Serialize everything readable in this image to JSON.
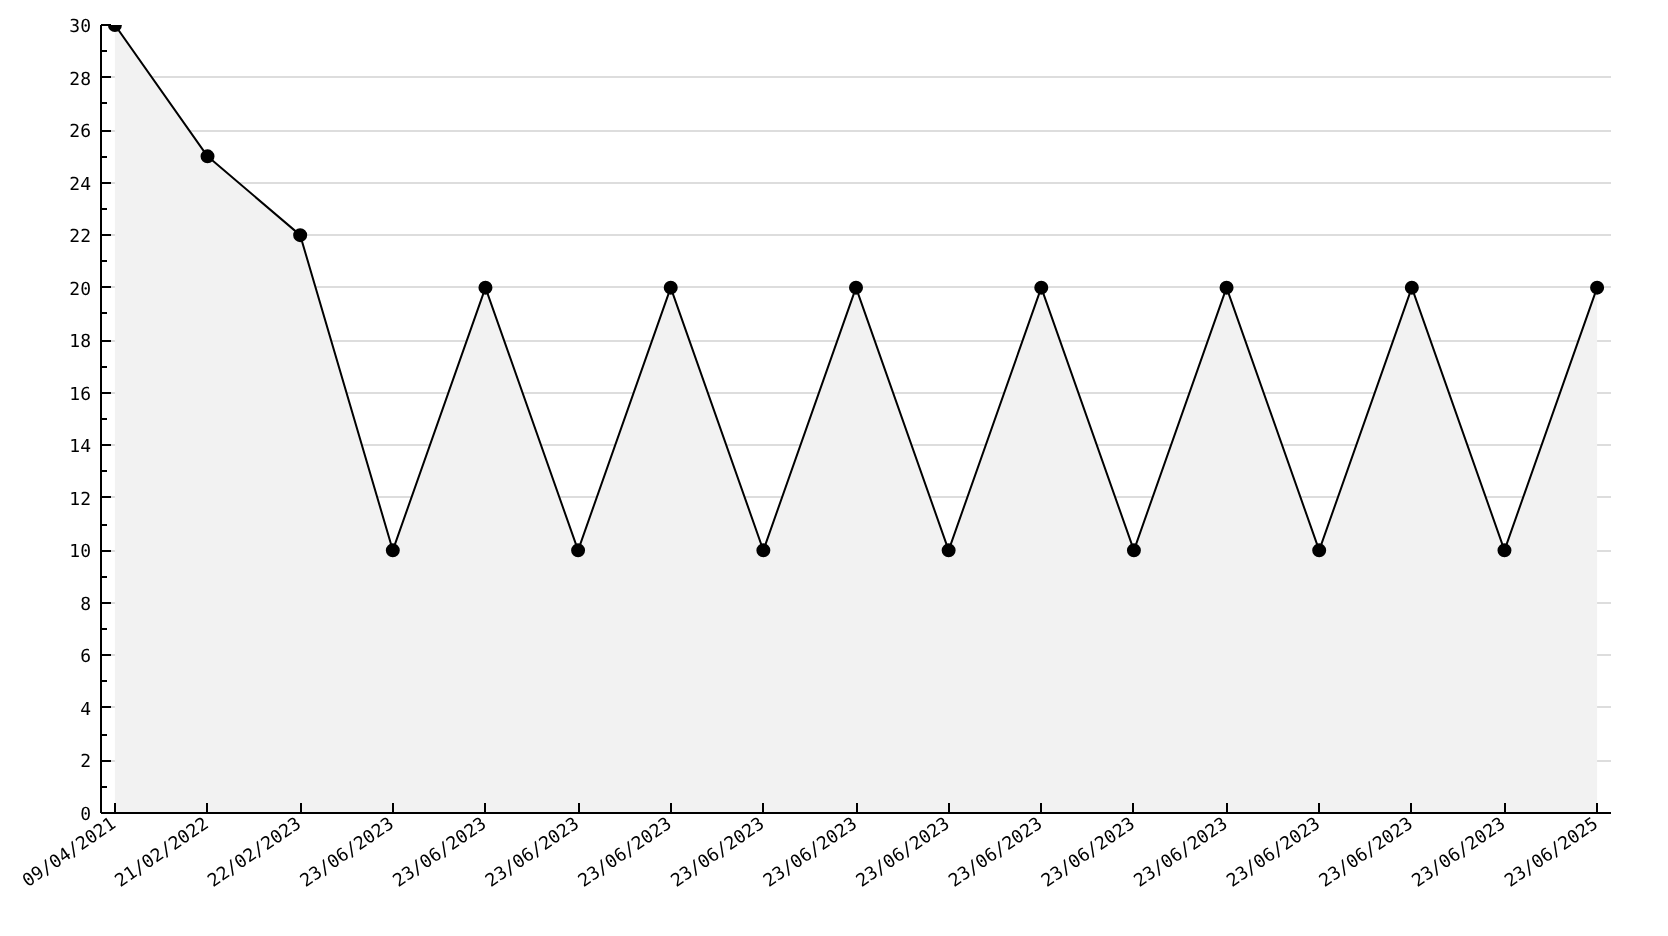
{
  "chart_data": {
    "type": "area",
    "categories": [
      "09/04/2021",
      "21/02/2022",
      "22/02/2023",
      "23/06/2023",
      "23/06/2023",
      "23/06/2023",
      "23/06/2023",
      "23/06/2023",
      "23/06/2023",
      "23/06/2023",
      "23/06/2023",
      "23/06/2023",
      "23/06/2023",
      "23/06/2023",
      "23/06/2023",
      "23/06/2023",
      "23/06/2025"
    ],
    "series": [
      {
        "color": "#000000",
        "values": [
          30,
          25,
          22,
          10,
          20,
          10,
          20,
          10,
          20,
          10,
          20,
          10,
          20,
          10,
          20,
          10,
          20
        ]
      }
    ],
    "ylim": [
      0,
      30
    ],
    "yticks": [
      0,
      2,
      4,
      6,
      8,
      10,
      12,
      14,
      16,
      18,
      20,
      22,
      24,
      26,
      28,
      30
    ],
    "grid": "y",
    "marker": "circle",
    "line_style": "solid"
  }
}
